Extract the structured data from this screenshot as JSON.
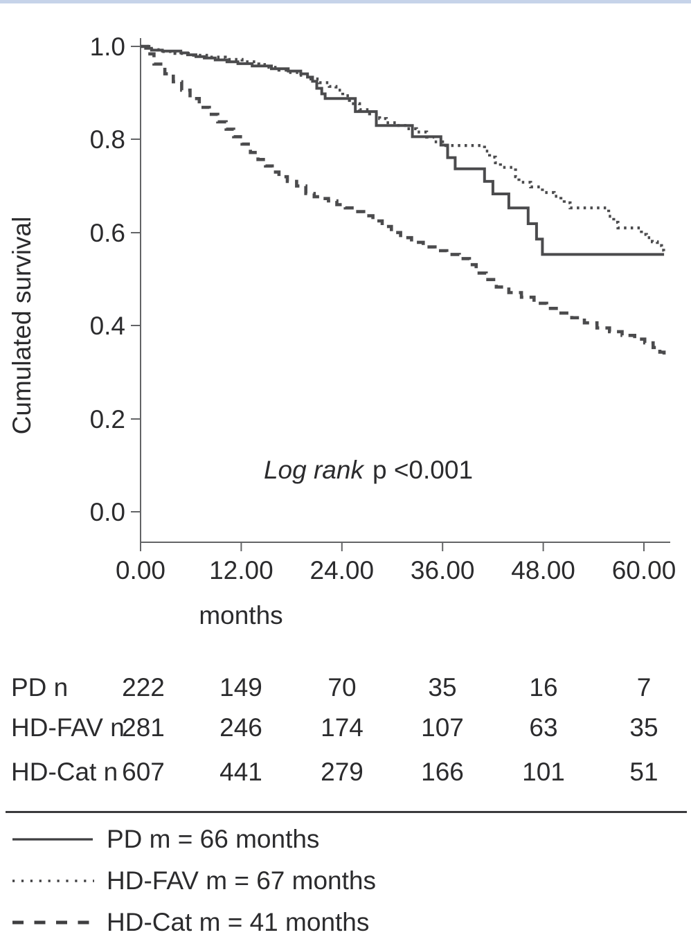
{
  "page": {
    "top_border_color": "#c6d3e9",
    "background": "#ffffff",
    "text_color": "#2b2b2d"
  },
  "chart_data": {
    "type": "line",
    "subtype": "kaplan-meier-step",
    "title": "",
    "xlabel": "months",
    "ylabel": "Cumulated survival",
    "xlim": [
      0,
      63.2
    ],
    "ylim": [
      0.0,
      1.0
    ],
    "grid": false,
    "legend_position": "below-chart",
    "x_tick_labels": [
      "0.00",
      "12.00",
      "24.00",
      "36.00",
      "48.00",
      "60.00"
    ],
    "x_tick_values": [
      0,
      12,
      24,
      36,
      48,
      60
    ],
    "y_tick_labels": [
      "1.0",
      "0.8",
      "0.6",
      "0.4",
      "0.2",
      "0.0"
    ],
    "y_tick_values": [
      1.0,
      0.8,
      0.6,
      0.4,
      0.2,
      0.0
    ],
    "annotation": {
      "italic": "Log rank",
      "regular": "p <0.001"
    },
    "line_color": "#4b4b4d",
    "series": [
      {
        "name": "PD",
        "style": "solid",
        "median_months": 66,
        "points": [
          [
            0,
            1.0
          ],
          [
            0.6,
            0.996
          ],
          [
            1.3,
            0.992
          ],
          [
            2.6,
            0.99
          ],
          [
            4.8,
            0.986
          ],
          [
            5.6,
            0.982
          ],
          [
            6.6,
            0.978
          ],
          [
            7.6,
            0.975
          ],
          [
            8.9,
            0.971
          ],
          [
            10.3,
            0.967
          ],
          [
            11.6,
            0.963
          ],
          [
            13.3,
            0.958
          ],
          [
            15.6,
            0.952
          ],
          [
            17.6,
            0.947
          ],
          [
            19.1,
            0.941
          ],
          [
            19.9,
            0.934
          ],
          [
            20.5,
            0.925
          ],
          [
            21.0,
            0.91
          ],
          [
            21.6,
            0.898
          ],
          [
            22.0,
            0.888
          ],
          [
            25.6,
            0.86
          ],
          [
            28.1,
            0.83
          ],
          [
            32.4,
            0.806
          ],
          [
            35.8,
            0.788
          ],
          [
            36.6,
            0.761
          ],
          [
            37.5,
            0.737
          ],
          [
            41.0,
            0.71
          ],
          [
            42.0,
            0.683
          ],
          [
            43.9,
            0.653
          ],
          [
            46.2,
            0.619
          ],
          [
            47.2,
            0.586
          ],
          [
            47.9,
            0.553
          ],
          [
            62.4,
            0.553
          ]
        ]
      },
      {
        "name": "HD-FAV",
        "style": "dotted",
        "median_months": 67,
        "points": [
          [
            0,
            1.0
          ],
          [
            1.0,
            0.993
          ],
          [
            2.1,
            0.989
          ],
          [
            4.1,
            0.985
          ],
          [
            6.1,
            0.981
          ],
          [
            8.1,
            0.977
          ],
          [
            10.1,
            0.972
          ],
          [
            12.1,
            0.967
          ],
          [
            14.1,
            0.961
          ],
          [
            15.3,
            0.955
          ],
          [
            16.5,
            0.949
          ],
          [
            17.7,
            0.944
          ],
          [
            18.9,
            0.938
          ],
          [
            20.1,
            0.93
          ],
          [
            21.3,
            0.922
          ],
          [
            22.5,
            0.914
          ],
          [
            23.3,
            0.906
          ],
          [
            24.1,
            0.894
          ],
          [
            24.9,
            0.877
          ],
          [
            26.1,
            0.864
          ],
          [
            27.3,
            0.855
          ],
          [
            28.5,
            0.845
          ],
          [
            29.3,
            0.836
          ],
          [
            30.5,
            0.83
          ],
          [
            31.7,
            0.823
          ],
          [
            32.9,
            0.816
          ],
          [
            34.1,
            0.805
          ],
          [
            35.0,
            0.795
          ],
          [
            36.0,
            0.787
          ],
          [
            41.0,
            0.775
          ],
          [
            41.6,
            0.762
          ],
          [
            42.3,
            0.75
          ],
          [
            42.9,
            0.74
          ],
          [
            44.7,
            0.72
          ],
          [
            45.1,
            0.708
          ],
          [
            46.5,
            0.698
          ],
          [
            47.9,
            0.686
          ],
          [
            49.3,
            0.678
          ],
          [
            50.1,
            0.671
          ],
          [
            50.5,
            0.664
          ],
          [
            51.2,
            0.653
          ],
          [
            55.8,
            0.635
          ],
          [
            56.4,
            0.622
          ],
          [
            56.9,
            0.61
          ],
          [
            59.7,
            0.596
          ],
          [
            60.3,
            0.589
          ],
          [
            61.0,
            0.58
          ],
          [
            61.6,
            0.572
          ],
          [
            62.1,
            0.562
          ],
          [
            62.35,
            0.557
          ]
        ]
      },
      {
        "name": "HD-Cat",
        "style": "dashed",
        "median_months": 41,
        "points": [
          [
            0,
            1.0
          ],
          [
            0.8,
            0.984
          ],
          [
            1.6,
            0.962
          ],
          [
            2.9,
            0.941
          ],
          [
            3.9,
            0.924
          ],
          [
            4.9,
            0.906
          ],
          [
            5.9,
            0.888
          ],
          [
            7.0,
            0.869
          ],
          [
            8.2,
            0.854
          ],
          [
            9.2,
            0.838
          ],
          [
            10.2,
            0.822
          ],
          [
            11.1,
            0.806
          ],
          [
            12.1,
            0.79
          ],
          [
            13.1,
            0.772
          ],
          [
            14.0,
            0.757
          ],
          [
            14.9,
            0.743
          ],
          [
            15.7,
            0.73
          ],
          [
            16.5,
            0.72
          ],
          [
            17.5,
            0.71
          ],
          [
            18.6,
            0.7
          ],
          [
            19.7,
            0.684
          ],
          [
            20.7,
            0.677
          ],
          [
            21.5,
            0.673
          ],
          [
            22.4,
            0.668
          ],
          [
            23.4,
            0.66
          ],
          [
            24.4,
            0.653
          ],
          [
            25.5,
            0.645
          ],
          [
            26.6,
            0.636
          ],
          [
            27.7,
            0.625
          ],
          [
            28.8,
            0.613
          ],
          [
            29.9,
            0.6
          ],
          [
            31.0,
            0.589
          ],
          [
            32.3,
            0.579
          ],
          [
            33.7,
            0.569
          ],
          [
            35.1,
            0.561
          ],
          [
            36.5,
            0.553
          ],
          [
            38.0,
            0.544
          ],
          [
            39.2,
            0.531
          ],
          [
            40.0,
            0.513
          ],
          [
            41.2,
            0.499
          ],
          [
            42.4,
            0.483
          ],
          [
            43.9,
            0.471
          ],
          [
            45.4,
            0.461
          ],
          [
            46.9,
            0.448
          ],
          [
            48.4,
            0.437
          ],
          [
            49.9,
            0.427
          ],
          [
            51.4,
            0.417
          ],
          [
            52.9,
            0.406
          ],
          [
            54.4,
            0.395
          ],
          [
            55.9,
            0.387
          ],
          [
            57.4,
            0.379
          ],
          [
            58.9,
            0.371
          ],
          [
            60.1,
            0.363
          ],
          [
            61.1,
            0.353
          ],
          [
            61.9,
            0.343
          ],
          [
            62.4,
            0.337
          ]
        ]
      }
    ]
  },
  "risk_table": {
    "rows": [
      {
        "label": "PD n",
        "counts": [
          "222",
          "149",
          "70",
          "35",
          "16",
          "7"
        ]
      },
      {
        "label": "HD-FAV n",
        "counts": [
          "281",
          "246",
          "174",
          "107",
          "63",
          "35"
        ]
      },
      {
        "label": "HD-Cat n",
        "counts": [
          "607",
          "441",
          "279",
          "166",
          "101",
          "51"
        ]
      }
    ]
  },
  "legend": {
    "items": [
      {
        "style": "solid",
        "label": "PD m = 66 months"
      },
      {
        "style": "dotted",
        "label": "HD-FAV m = 67 months"
      },
      {
        "style": "dashed",
        "label": "HD-Cat m = 41 months"
      }
    ]
  }
}
